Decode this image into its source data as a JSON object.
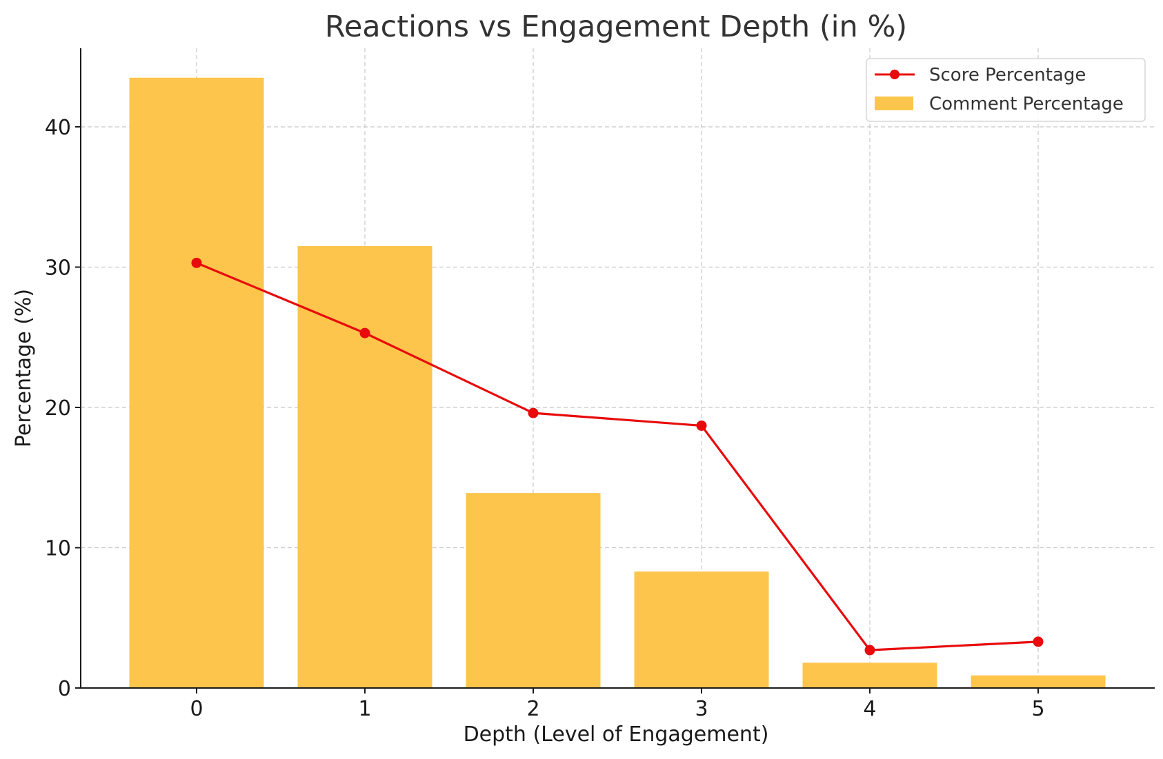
{
  "chart_data": {
    "type": "bar",
    "title": "Reactions vs Engagement Depth (in %)",
    "xlabel": "Depth (Level of Engagement)",
    "ylabel": "Percentage (%)",
    "categories": [
      "0",
      "1",
      "2",
      "3",
      "4",
      "5"
    ],
    "y_ticks": [
      "0",
      "10",
      "20",
      "30",
      "40"
    ],
    "ylim": [
      0,
      45.6
    ],
    "grid": true,
    "legend_position": "top-right",
    "series": [
      {
        "name": "Score Percentage",
        "type": "line",
        "color": "#e80b0b",
        "values": [
          30.3,
          25.3,
          19.6,
          18.7,
          2.7,
          3.3
        ]
      },
      {
        "name": "Comment Percentage",
        "type": "bar",
        "color": "#fdc54c",
        "values": [
          43.5,
          31.5,
          13.9,
          8.3,
          1.8,
          0.9
        ]
      }
    ]
  }
}
